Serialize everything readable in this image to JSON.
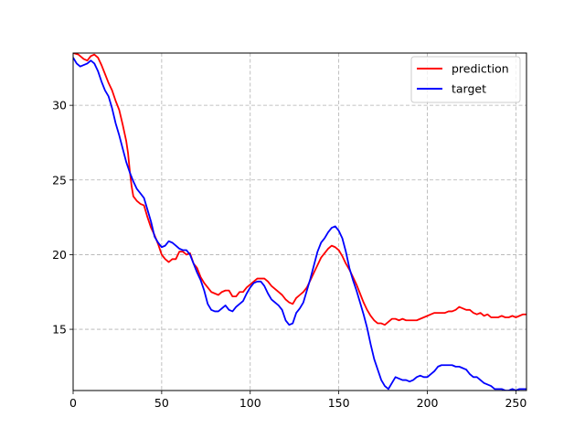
{
  "chart_data": {
    "type": "line",
    "title": "",
    "xlabel": "",
    "ylabel": "",
    "xlim": [
      0,
      256
    ],
    "ylim": [
      10.9,
      33.5
    ],
    "xticks": [
      0,
      50,
      100,
      150,
      200,
      250
    ],
    "yticks": [
      15,
      20,
      25,
      30
    ],
    "grid": true,
    "legend_position": "top-right",
    "series": [
      {
        "name": "prediction",
        "color": "#ff0000",
        "points": [
          [
            0,
            33.5
          ],
          [
            3,
            33.4
          ],
          [
            6,
            33.1
          ],
          [
            8,
            33.0
          ],
          [
            10,
            33.3
          ],
          [
            12,
            33.4
          ],
          [
            14,
            33.2
          ],
          [
            16,
            32.7
          ],
          [
            18,
            32.1
          ],
          [
            20,
            31.5
          ],
          [
            22,
            31.0
          ],
          [
            24,
            30.3
          ],
          [
            26,
            29.7
          ],
          [
            28,
            28.7
          ],
          [
            30,
            27.6
          ],
          [
            31,
            26.8
          ],
          [
            32,
            25.6
          ],
          [
            33,
            24.6
          ],
          [
            34,
            23.9
          ],
          [
            36,
            23.6
          ],
          [
            38,
            23.4
          ],
          [
            40,
            23.3
          ],
          [
            42,
            22.5
          ],
          [
            44,
            21.8
          ],
          [
            46,
            21.3
          ],
          [
            48,
            20.7
          ],
          [
            50,
            20.0
          ],
          [
            52,
            19.7
          ],
          [
            54,
            19.5
          ],
          [
            56,
            19.7
          ],
          [
            58,
            19.7
          ],
          [
            60,
            20.2
          ],
          [
            62,
            20.2
          ],
          [
            64,
            20.0
          ],
          [
            66,
            20.1
          ],
          [
            68,
            19.4
          ],
          [
            70,
            19.1
          ],
          [
            72,
            18.5
          ],
          [
            74,
            18.1
          ],
          [
            76,
            17.8
          ],
          [
            78,
            17.5
          ],
          [
            80,
            17.4
          ],
          [
            82,
            17.3
          ],
          [
            84,
            17.5
          ],
          [
            86,
            17.6
          ],
          [
            88,
            17.6
          ],
          [
            90,
            17.2
          ],
          [
            92,
            17.2
          ],
          [
            94,
            17.5
          ],
          [
            96,
            17.5
          ],
          [
            98,
            17.8
          ],
          [
            100,
            18.0
          ],
          [
            102,
            18.2
          ],
          [
            104,
            18.4
          ],
          [
            106,
            18.4
          ],
          [
            108,
            18.4
          ],
          [
            110,
            18.2
          ],
          [
            112,
            17.9
          ],
          [
            114,
            17.7
          ],
          [
            116,
            17.5
          ],
          [
            118,
            17.3
          ],
          [
            120,
            17.0
          ],
          [
            122,
            16.8
          ],
          [
            124,
            16.7
          ],
          [
            126,
            17.1
          ],
          [
            128,
            17.3
          ],
          [
            130,
            17.5
          ],
          [
            132,
            17.8
          ],
          [
            134,
            18.3
          ],
          [
            136,
            18.8
          ],
          [
            138,
            19.3
          ],
          [
            140,
            19.8
          ],
          [
            142,
            20.1
          ],
          [
            144,
            20.4
          ],
          [
            146,
            20.6
          ],
          [
            148,
            20.5
          ],
          [
            150,
            20.3
          ],
          [
            152,
            19.9
          ],
          [
            154,
            19.4
          ],
          [
            156,
            19.0
          ],
          [
            158,
            18.5
          ],
          [
            160,
            18.0
          ],
          [
            162,
            17.4
          ],
          [
            164,
            16.8
          ],
          [
            166,
            16.3
          ],
          [
            168,
            15.9
          ],
          [
            170,
            15.6
          ],
          [
            172,
            15.4
          ],
          [
            174,
            15.4
          ],
          [
            176,
            15.3
          ],
          [
            178,
            15.5
          ],
          [
            180,
            15.7
          ],
          [
            182,
            15.7
          ],
          [
            184,
            15.6
          ],
          [
            186,
            15.7
          ],
          [
            188,
            15.6
          ],
          [
            190,
            15.6
          ],
          [
            192,
            15.6
          ],
          [
            194,
            15.6
          ],
          [
            196,
            15.7
          ],
          [
            198,
            15.8
          ],
          [
            200,
            15.9
          ],
          [
            202,
            16.0
          ],
          [
            204,
            16.1
          ],
          [
            206,
            16.1
          ],
          [
            208,
            16.1
          ],
          [
            210,
            16.1
          ],
          [
            212,
            16.2
          ],
          [
            214,
            16.2
          ],
          [
            216,
            16.3
          ],
          [
            218,
            16.5
          ],
          [
            220,
            16.4
          ],
          [
            222,
            16.3
          ],
          [
            224,
            16.3
          ],
          [
            226,
            16.1
          ],
          [
            228,
            16.0
          ],
          [
            230,
            16.1
          ],
          [
            232,
            15.9
          ],
          [
            234,
            16.0
          ],
          [
            236,
            15.8
          ],
          [
            238,
            15.8
          ],
          [
            240,
            15.8
          ],
          [
            242,
            15.9
          ],
          [
            244,
            15.8
          ],
          [
            246,
            15.8
          ],
          [
            248,
            15.9
          ],
          [
            250,
            15.8
          ],
          [
            252,
            15.9
          ],
          [
            254,
            16.0
          ],
          [
            256,
            16.0
          ]
        ]
      },
      {
        "name": "target",
        "color": "#0000ff",
        "points": [
          [
            0,
            33.2
          ],
          [
            2,
            32.8
          ],
          [
            4,
            32.6
          ],
          [
            6,
            32.7
          ],
          [
            8,
            32.8
          ],
          [
            10,
            33.0
          ],
          [
            12,
            32.8
          ],
          [
            14,
            32.3
          ],
          [
            16,
            31.6
          ],
          [
            18,
            31.0
          ],
          [
            20,
            30.6
          ],
          [
            22,
            29.8
          ],
          [
            24,
            28.8
          ],
          [
            26,
            28.0
          ],
          [
            28,
            27.1
          ],
          [
            30,
            26.2
          ],
          [
            32,
            25.5
          ],
          [
            34,
            24.9
          ],
          [
            36,
            24.4
          ],
          [
            38,
            24.1
          ],
          [
            40,
            23.8
          ],
          [
            42,
            23.0
          ],
          [
            44,
            22.2
          ],
          [
            46,
            21.2
          ],
          [
            48,
            20.8
          ],
          [
            50,
            20.5
          ],
          [
            52,
            20.6
          ],
          [
            54,
            20.9
          ],
          [
            56,
            20.8
          ],
          [
            58,
            20.6
          ],
          [
            60,
            20.4
          ],
          [
            62,
            20.3
          ],
          [
            64,
            20.3
          ],
          [
            66,
            20.0
          ],
          [
            68,
            19.4
          ],
          [
            70,
            18.8
          ],
          [
            72,
            18.3
          ],
          [
            74,
            17.6
          ],
          [
            76,
            16.7
          ],
          [
            78,
            16.3
          ],
          [
            80,
            16.2
          ],
          [
            82,
            16.2
          ],
          [
            84,
            16.4
          ],
          [
            86,
            16.6
          ],
          [
            88,
            16.3
          ],
          [
            90,
            16.2
          ],
          [
            92,
            16.5
          ],
          [
            94,
            16.7
          ],
          [
            96,
            16.9
          ],
          [
            98,
            17.4
          ],
          [
            100,
            17.8
          ],
          [
            102,
            18.1
          ],
          [
            104,
            18.2
          ],
          [
            106,
            18.2
          ],
          [
            108,
            17.9
          ],
          [
            110,
            17.4
          ],
          [
            112,
            17.0
          ],
          [
            114,
            16.8
          ],
          [
            116,
            16.6
          ],
          [
            118,
            16.3
          ],
          [
            120,
            15.6
          ],
          [
            122,
            15.3
          ],
          [
            124,
            15.4
          ],
          [
            126,
            16.1
          ],
          [
            128,
            16.4
          ],
          [
            130,
            16.8
          ],
          [
            132,
            17.6
          ],
          [
            134,
            18.4
          ],
          [
            136,
            19.3
          ],
          [
            138,
            20.2
          ],
          [
            140,
            20.8
          ],
          [
            142,
            21.1
          ],
          [
            144,
            21.5
          ],
          [
            146,
            21.8
          ],
          [
            148,
            21.9
          ],
          [
            150,
            21.6
          ],
          [
            152,
            21.1
          ],
          [
            154,
            20.2
          ],
          [
            156,
            19.1
          ],
          [
            158,
            18.3
          ],
          [
            160,
            17.6
          ],
          [
            162,
            16.8
          ],
          [
            164,
            16.0
          ],
          [
            166,
            15.1
          ],
          [
            168,
            14.0
          ],
          [
            170,
            13.0
          ],
          [
            172,
            12.3
          ],
          [
            174,
            11.6
          ],
          [
            176,
            11.2
          ],
          [
            178,
            11.0
          ],
          [
            180,
            11.4
          ],
          [
            182,
            11.8
          ],
          [
            184,
            11.7
          ],
          [
            186,
            11.6
          ],
          [
            188,
            11.6
          ],
          [
            190,
            11.5
          ],
          [
            192,
            11.6
          ],
          [
            194,
            11.8
          ],
          [
            196,
            11.9
          ],
          [
            198,
            11.8
          ],
          [
            200,
            11.8
          ],
          [
            202,
            12.0
          ],
          [
            204,
            12.2
          ],
          [
            206,
            12.5
          ],
          [
            208,
            12.6
          ],
          [
            210,
            12.6
          ],
          [
            212,
            12.6
          ],
          [
            214,
            12.6
          ],
          [
            216,
            12.5
          ],
          [
            218,
            12.5
          ],
          [
            220,
            12.4
          ],
          [
            222,
            12.3
          ],
          [
            224,
            12.0
          ],
          [
            226,
            11.8
          ],
          [
            228,
            11.8
          ],
          [
            230,
            11.6
          ],
          [
            232,
            11.4
          ],
          [
            234,
            11.3
          ],
          [
            236,
            11.2
          ],
          [
            238,
            11.0
          ],
          [
            240,
            11.0
          ],
          [
            242,
            11.0
          ],
          [
            244,
            10.9
          ],
          [
            246,
            10.9
          ],
          [
            248,
            11.0
          ],
          [
            250,
            10.9
          ],
          [
            252,
            11.0
          ],
          [
            254,
            11.0
          ],
          [
            256,
            11.0
          ]
        ]
      }
    ]
  }
}
